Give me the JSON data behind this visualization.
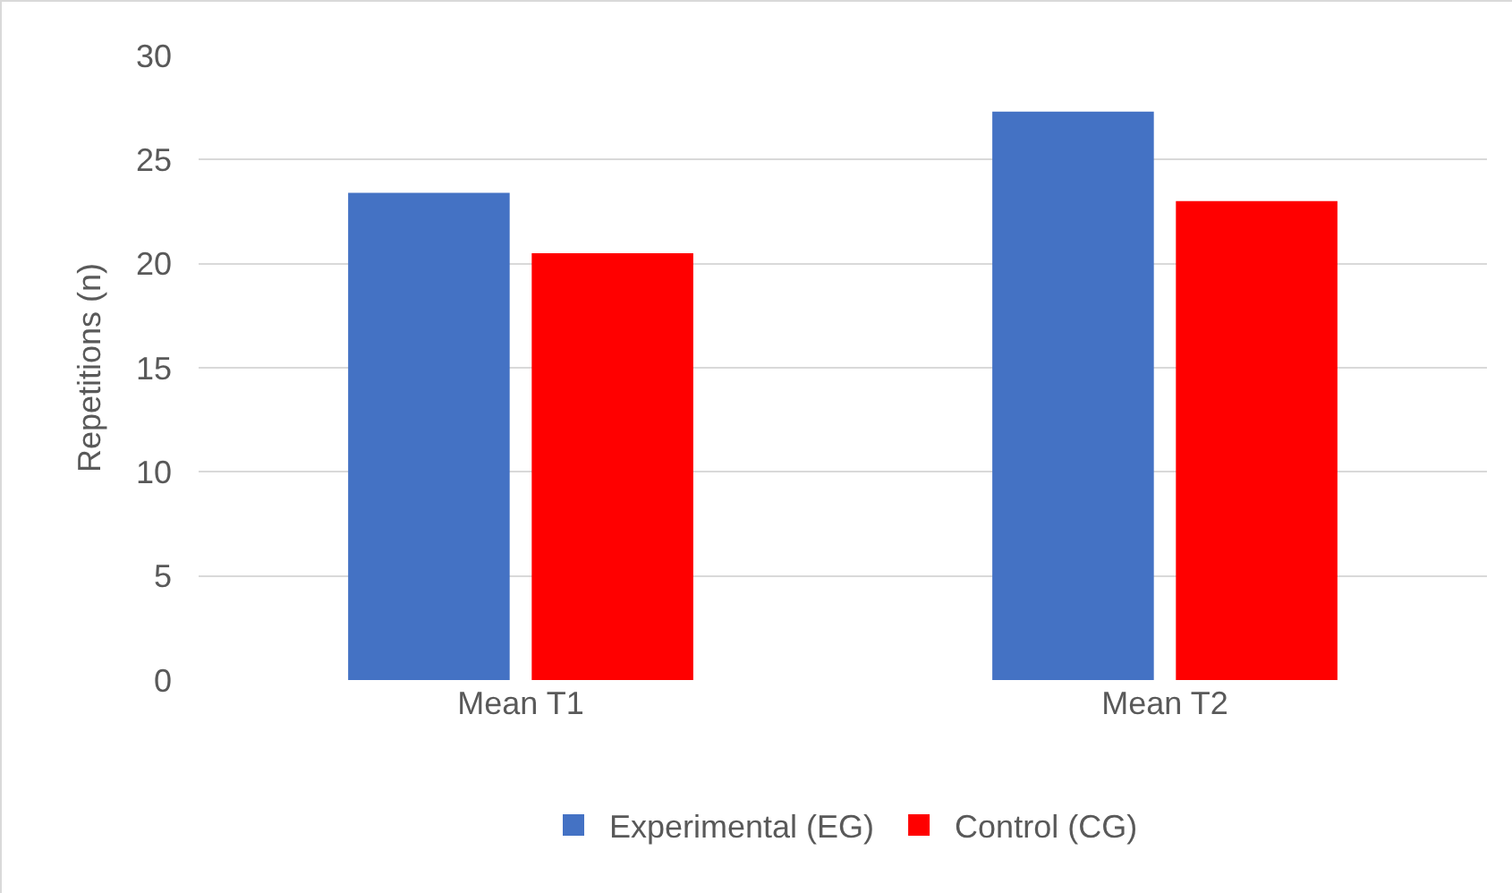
{
  "chart_data": {
    "type": "bar",
    "ylabel": "Repetitions (n)",
    "categories": [
      "Mean T1",
      "Mean T2"
    ],
    "series": [
      {
        "name": "Experimental (EG)",
        "color": "#4472c4",
        "values": [
          23.4,
          27.3
        ]
      },
      {
        "name": "Control (CG)",
        "color": "#ff0000",
        "values": [
          20.5,
          23.0
        ]
      }
    ],
    "ylim": [
      0,
      30
    ],
    "yticks": [
      0,
      5,
      10,
      15,
      20,
      25,
      30
    ],
    "grid": "y",
    "legend": "bottom"
  }
}
